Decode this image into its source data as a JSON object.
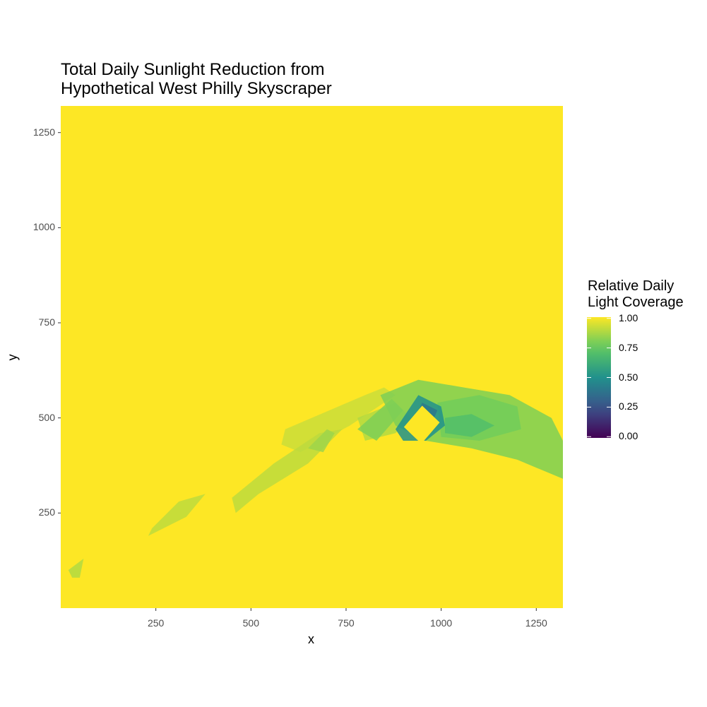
{
  "chart_data": {
    "type": "heatmap",
    "title_lines": [
      "Total Daily Sunlight Reduction from",
      "Hypothetical West Philly Skyscraper"
    ],
    "xlabel": "x",
    "ylabel": "y",
    "xlim": [
      0,
      1320
    ],
    "ylim": [
      0,
      1320
    ],
    "x_ticks": [
      250,
      500,
      750,
      1000,
      1250
    ],
    "y_ticks": [
      250,
      500,
      750,
      1000,
      1250
    ],
    "x_tick_labels": [
      "250",
      "500",
      "750",
      "1000",
      "1250"
    ],
    "y_tick_labels": [
      "250",
      "500",
      "750",
      "1000",
      "1250"
    ],
    "grid": false,
    "background_value": 1.0,
    "colorscale": "viridis",
    "legend": {
      "title_lines": [
        "Relative Daily",
        "Light Coverage"
      ],
      "position": "right",
      "range": [
        0.0,
        1.0
      ],
      "breaks": [
        1.0,
        0.75,
        0.5,
        0.25,
        0.0
      ],
      "labels": [
        "1.00",
        "0.75",
        "0.50",
        "0.25",
        "0.00"
      ]
    },
    "regions": [
      {
        "value": 0.92,
        "points": [
          [
            590,
            470
          ],
          [
            800,
            560
          ],
          [
            850,
            580
          ],
          [
            880,
            560
          ],
          [
            760,
            480
          ],
          [
            630,
            410
          ],
          [
            580,
            430
          ]
        ]
      },
      {
        "value": 0.9,
        "points": [
          [
            450,
            290
          ],
          [
            560,
            380
          ],
          [
            680,
            460
          ],
          [
            740,
            470
          ],
          [
            650,
            380
          ],
          [
            520,
            300
          ],
          [
            460,
            250
          ]
        ]
      },
      {
        "value": 0.88,
        "points": [
          [
            780,
            500
          ],
          [
            880,
            540
          ],
          [
            920,
            500
          ],
          [
            880,
            460
          ],
          [
            800,
            440
          ]
        ]
      },
      {
        "value": 0.8,
        "points": [
          [
            780,
            470
          ],
          [
            870,
            550
          ],
          [
            900,
            520
          ],
          [
            830,
            440
          ]
        ]
      },
      {
        "value": 0.8,
        "points": [
          [
            840,
            560
          ],
          [
            940,
            600
          ],
          [
            1060,
            580
          ],
          [
            1180,
            560
          ],
          [
            1290,
            500
          ],
          [
            1320,
            440
          ],
          [
            1320,
            340
          ],
          [
            1200,
            390
          ],
          [
            1080,
            420
          ],
          [
            960,
            440
          ],
          [
            880,
            480
          ]
        ]
      },
      {
        "value": 0.78,
        "points": [
          [
            990,
            540
          ],
          [
            1100,
            560
          ],
          [
            1200,
            530
          ],
          [
            1210,
            470
          ],
          [
            1100,
            440
          ],
          [
            1000,
            450
          ]
        ]
      },
      {
        "value": 0.7,
        "points": [
          [
            1010,
            500
          ],
          [
            1080,
            510
          ],
          [
            1140,
            480
          ],
          [
            1080,
            450
          ],
          [
            1010,
            460
          ]
        ]
      },
      {
        "value": 0.5,
        "points": [
          [
            880,
            470
          ],
          [
            940,
            560
          ],
          [
            1000,
            530
          ],
          [
            1010,
            480
          ],
          [
            960,
            440
          ],
          [
            900,
            440
          ]
        ]
      },
      {
        "value": 0.4,
        "points": [
          [
            920,
            470
          ],
          [
            950,
            540
          ],
          [
            990,
            520
          ],
          [
            960,
            450
          ]
        ]
      },
      {
        "value": 0.9,
        "points": [
          [
            230,
            190
          ],
          [
            330,
            240
          ],
          [
            380,
            300
          ],
          [
            310,
            280
          ],
          [
            240,
            210
          ]
        ]
      },
      {
        "value": 0.88,
        "points": [
          [
            20,
            100
          ],
          [
            60,
            130
          ],
          [
            50,
            80
          ],
          [
            30,
            80
          ]
        ]
      },
      {
        "value": 0.85,
        "points": [
          [
            650,
            420
          ],
          [
            700,
            470
          ],
          [
            720,
            460
          ],
          [
            690,
            410
          ]
        ]
      },
      {
        "value": 1.0,
        "points": [
          [
            902,
            476
          ],
          [
            950,
            532
          ],
          [
            996,
            488
          ],
          [
            948,
            432
          ]
        ]
      }
    ]
  }
}
